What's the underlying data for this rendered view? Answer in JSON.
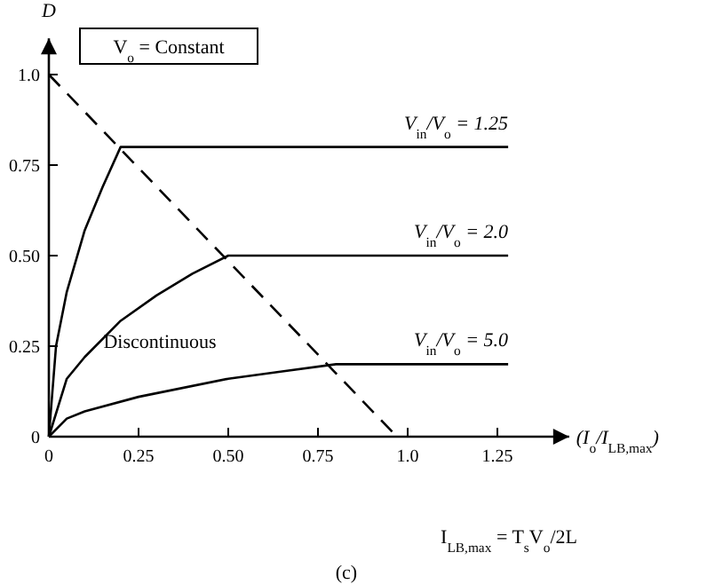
{
  "chart_data": {
    "type": "line",
    "xlabel": "(I$_{o}$/I$_{LB,max}$)",
    "ylabel": "D",
    "xlim": [
      0,
      1.45
    ],
    "ylim": [
      0,
      1.1
    ],
    "xticks": [
      0,
      0.25,
      {
        "value": 0.5,
        "label": "0.50"
      },
      0.75,
      {
        "value": 1,
        "label": "1.0"
      },
      1.25
    ],
    "yticks": [
      0,
      0.25,
      {
        "value": 0.5,
        "label": "0.50"
      },
      0.75,
      {
        "value": 1,
        "label": "1.0"
      }
    ],
    "grid": false,
    "marker": "none",
    "line_style": "solid",
    "series": [
      {
        "name": "V$_{in}$/V$_{o}$ = 1.25",
        "color": "#000000",
        "x": [
          0,
          0.02,
          0.05,
          0.1,
          0.15,
          0.2,
          1.28
        ],
        "values": [
          0,
          0.25,
          0.4,
          0.57,
          0.69,
          0.8,
          0.8
        ]
      },
      {
        "name": "V$_{in}$/V$_{o}$ = 2.0",
        "color": "#000000",
        "x": [
          0,
          0.05,
          0.1,
          0.2,
          0.3,
          0.4,
          0.5,
          1.28
        ],
        "values": [
          0,
          0.16,
          0.22,
          0.32,
          0.39,
          0.45,
          0.5,
          0.5
        ]
      },
      {
        "name": "V$_{in}$/V$_{o}$ = 5.0",
        "color": "#000000",
        "x": [
          0,
          0.05,
          0.1,
          0.25,
          0.5,
          0.65,
          0.8,
          1.28
        ],
        "values": [
          0,
          0.05,
          0.07,
          0.11,
          0.16,
          0.18,
          0.2,
          0.2
        ]
      },
      {
        "color": "#000000",
        "line_style": "dashed",
        "x": [
          0,
          0.97
        ],
        "values": [
          1,
          0
        ]
      }
    ],
    "annotations": [
      "V$_{o}$ = Constant",
      "Discontinuous",
      "I$_{LB,max}$ = T$_{s}$V$_{o}$/2L",
      "(c)"
    ]
  }
}
